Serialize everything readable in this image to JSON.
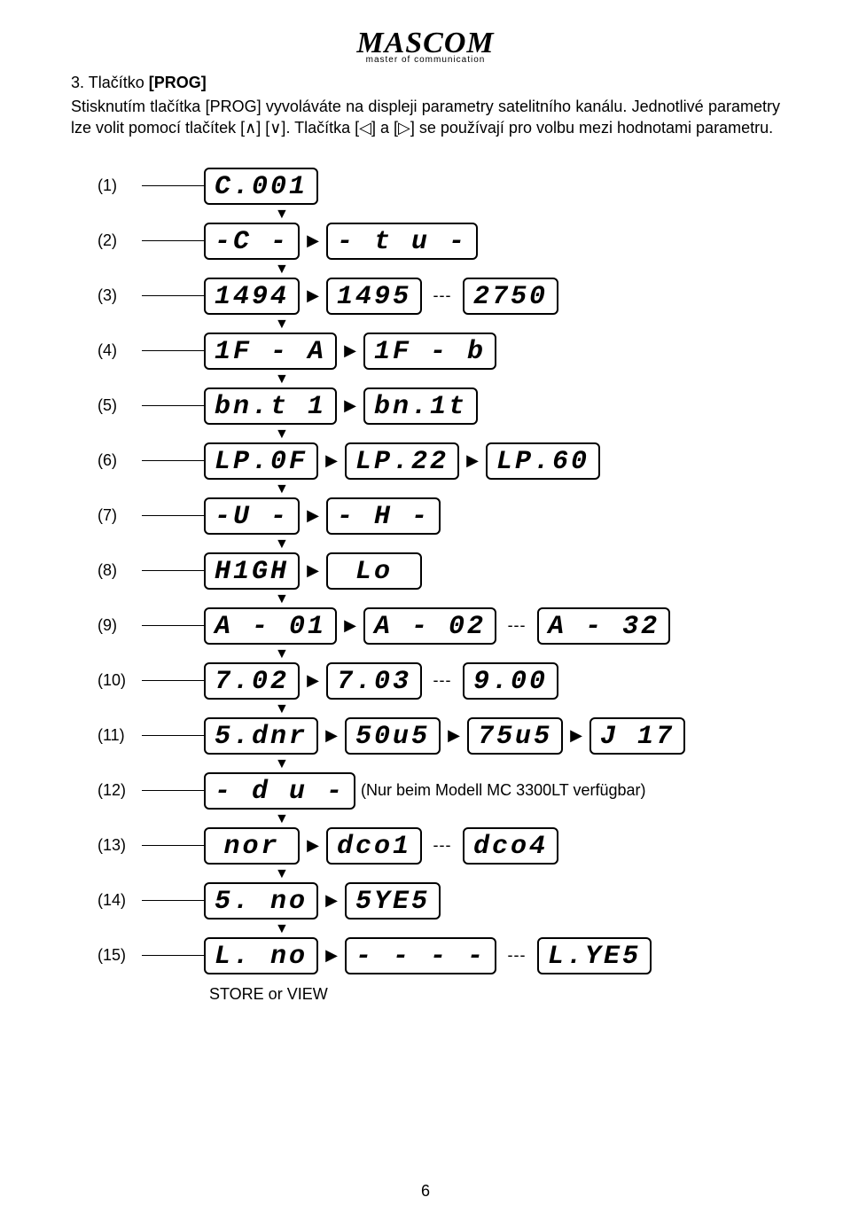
{
  "logo": {
    "brand": "MASCOM",
    "tagline": "master of communication"
  },
  "heading": {
    "num": "3.",
    "title_prefix": "Tlačítko ",
    "title_bold": "[PROG]"
  },
  "para": {
    "line1a": "Stisknutím tlačítka ",
    "line1b": "[PROG]",
    "line1c": " vyvoláváte na displeji parametry satelitního kanálu.",
    "line2a": "Jednotlivé parametry lze volit pomocí tlačítek ",
    "line2b": "[∧] [∨]",
    "line2c": ". Tlačítka ",
    "line2d": "[◁]",
    "line2e": " a ",
    "line2f": "[▷]",
    "line2g": " se používají pro volbu mezi hodnotami parametru."
  },
  "rows": [
    {
      "label": "(1)",
      "cells": [
        "C.001"
      ],
      "down": true
    },
    {
      "label": "(2)",
      "cells": [
        "-C -",
        "▶",
        "- t u -"
      ],
      "down": true
    },
    {
      "label": "(3)",
      "cells": [
        "1494",
        "▶",
        "1495",
        "---",
        "2750"
      ],
      "down": true
    },
    {
      "label": "(4)",
      "cells": [
        "1F - A",
        "▶",
        "1F - b"
      ],
      "down": true
    },
    {
      "label": "(5)",
      "cells": [
        "bn.t 1",
        "▶",
        "bn.1t"
      ],
      "down": true
    },
    {
      "label": "(6)",
      "cells": [
        "LP.0F",
        "▶",
        "LP.22",
        "▶",
        "LP.60"
      ],
      "down": true
    },
    {
      "label": "(7)",
      "cells": [
        "-U -",
        "▶",
        "- H -"
      ],
      "down": true
    },
    {
      "label": "(8)",
      "cells": [
        "H1GH",
        "▶",
        "Lo"
      ],
      "down": true
    },
    {
      "label": "(9)",
      "cells": [
        "A - 01",
        "▶",
        "A - 02",
        "---",
        "A - 32"
      ],
      "down": true
    },
    {
      "label": "(10)",
      "cells": [
        "7.02",
        "▶",
        "7.03",
        "---",
        "9.00"
      ],
      "down": true
    },
    {
      "label": "(11)",
      "cells": [
        "5.dnr",
        "▶",
        "50u5",
        "▶",
        "75u5",
        "▶",
        "J 17"
      ],
      "down": true
    },
    {
      "label": "(12)",
      "cells": [
        "- d u -"
      ],
      "note": "(Nur beim Modell MC 3300LT verfügbar)",
      "down": true
    },
    {
      "label": "(13)",
      "cells": [
        "nor",
        "▶",
        "dco1",
        "---",
        "dco4"
      ],
      "down": true
    },
    {
      "label": "(14)",
      "cells": [
        "5. no",
        "▶",
        "5YE5"
      ],
      "down": true
    },
    {
      "label": "(15)",
      "cells": [
        "L. no",
        "▶",
        "- - - -",
        "---",
        "L.YE5"
      ],
      "down": false
    }
  ],
  "footer_label": "STORE or VIEW",
  "page_number": "6"
}
